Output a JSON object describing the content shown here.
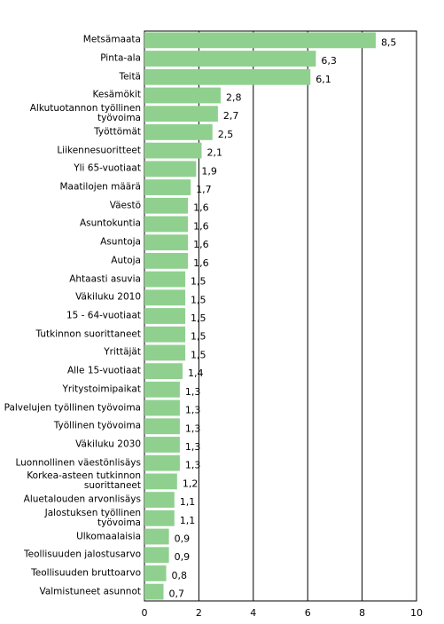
{
  "chart_data": {
    "type": "barh",
    "categories": [
      "Metsämaata",
      "Pinta-ala",
      "Teitä",
      "Kesämökit",
      "Alkutuotannon työllinen\ntyövoima",
      "Työttömät",
      "Liikennesuoritteet",
      "Yli 65-vuotiaat",
      "Maatilojen määrä",
      "Väestö",
      "Asuntokuntia",
      "Asuntoja",
      "Autoja",
      "Ahtaasti asuvia",
      "Väkiluku 2010",
      "15 - 64-vuotiaat",
      "Tutkinnon suorittaneet",
      "Yrittäjät",
      "Alle 15-vuotiaat",
      "Yritystoimipaikat",
      "Palvelujen työllinen työvoima",
      "Työllinen työvoima",
      "Väkiluku 2030",
      "Luonnollinen väestönlisäys",
      "Korkea-asteen tutkinnon\nsuorittaneet",
      "Aluetalouden arvonlisäys",
      "Jalostuksen työllinen työvoima",
      "Ulkomaalaisia",
      "Teollisuuden jalostusarvo",
      "Teollisuuden bruttoarvo",
      "Valmistuneet asunnot"
    ],
    "values": [
      8.5,
      6.3,
      6.1,
      2.8,
      2.7,
      2.5,
      2.1,
      1.9,
      1.7,
      1.6,
      1.6,
      1.6,
      1.6,
      1.5,
      1.5,
      1.5,
      1.5,
      1.5,
      1.4,
      1.3,
      1.3,
      1.3,
      1.3,
      1.3,
      1.2,
      1.1,
      1.1,
      0.9,
      0.9,
      0.8,
      0.7
    ],
    "value_labels": [
      "8,5",
      "6,3",
      "6,1",
      "2,8",
      "2,7",
      "2,5",
      "2,1",
      "1,9",
      "1,7",
      "1,6",
      "1,6",
      "1,6",
      "1,6",
      "1,5",
      "1,5",
      "1,5",
      "1,5",
      "1,5",
      "1,4",
      "1,3",
      "1,3",
      "1,3",
      "1,3",
      "1,3",
      "1,2",
      "1,1",
      "1,1",
      "0,9",
      "0,9",
      "0,8",
      "0,7"
    ],
    "color": "#8fd08f",
    "xlim": [
      0,
      10
    ],
    "xticks": [
      0,
      2,
      4,
      6,
      8,
      10
    ],
    "grid": true
  }
}
